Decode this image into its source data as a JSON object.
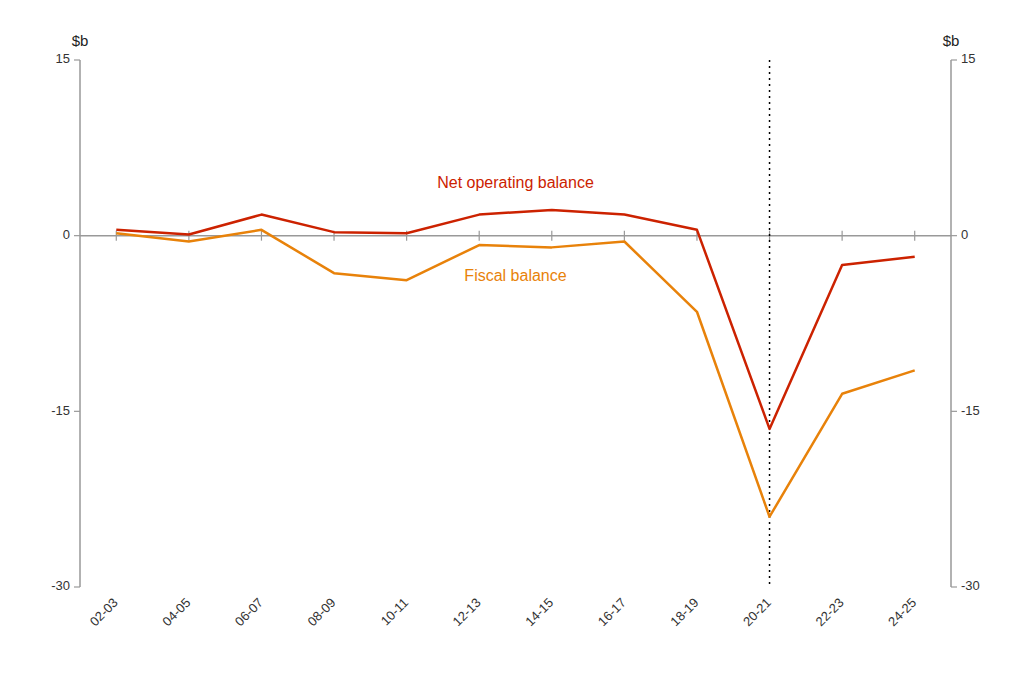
{
  "chart_data": {
    "type": "line",
    "categories": [
      "02-03",
      "04-05",
      "06-07",
      "08-09",
      "10-11",
      "12-13",
      "14-15",
      "16-17",
      "18-19",
      "20-21",
      "22-23",
      "24-25"
    ],
    "series": [
      {
        "name": "Net operating balance",
        "color": "#cc2200",
        "values": [
          0.5,
          0.1,
          1.8,
          0.3,
          0.2,
          1.8,
          2.2,
          1.8,
          0.5,
          -16.5,
          -2.5,
          -1.8
        ]
      },
      {
        "name": "Fiscal balance",
        "color": "#e8820a",
        "values": [
          0.2,
          -0.5,
          0.5,
          -3.2,
          -3.8,
          -0.8,
          -1.0,
          -0.5,
          -6.5,
          -24.0,
          -13.5,
          -11.5
        ]
      }
    ],
    "annotations": [
      {
        "type": "vline",
        "category": "20-21",
        "line_style": "dotted"
      }
    ],
    "y_label": "$b",
    "y2_label": "$b",
    "ylim": [
      -30,
      15
    ],
    "yticks": [
      -30,
      -15,
      0,
      15
    ],
    "y2lim": [
      -30,
      15
    ],
    "y2ticks": [
      -30,
      -15,
      0,
      15
    ],
    "grid": false
  }
}
